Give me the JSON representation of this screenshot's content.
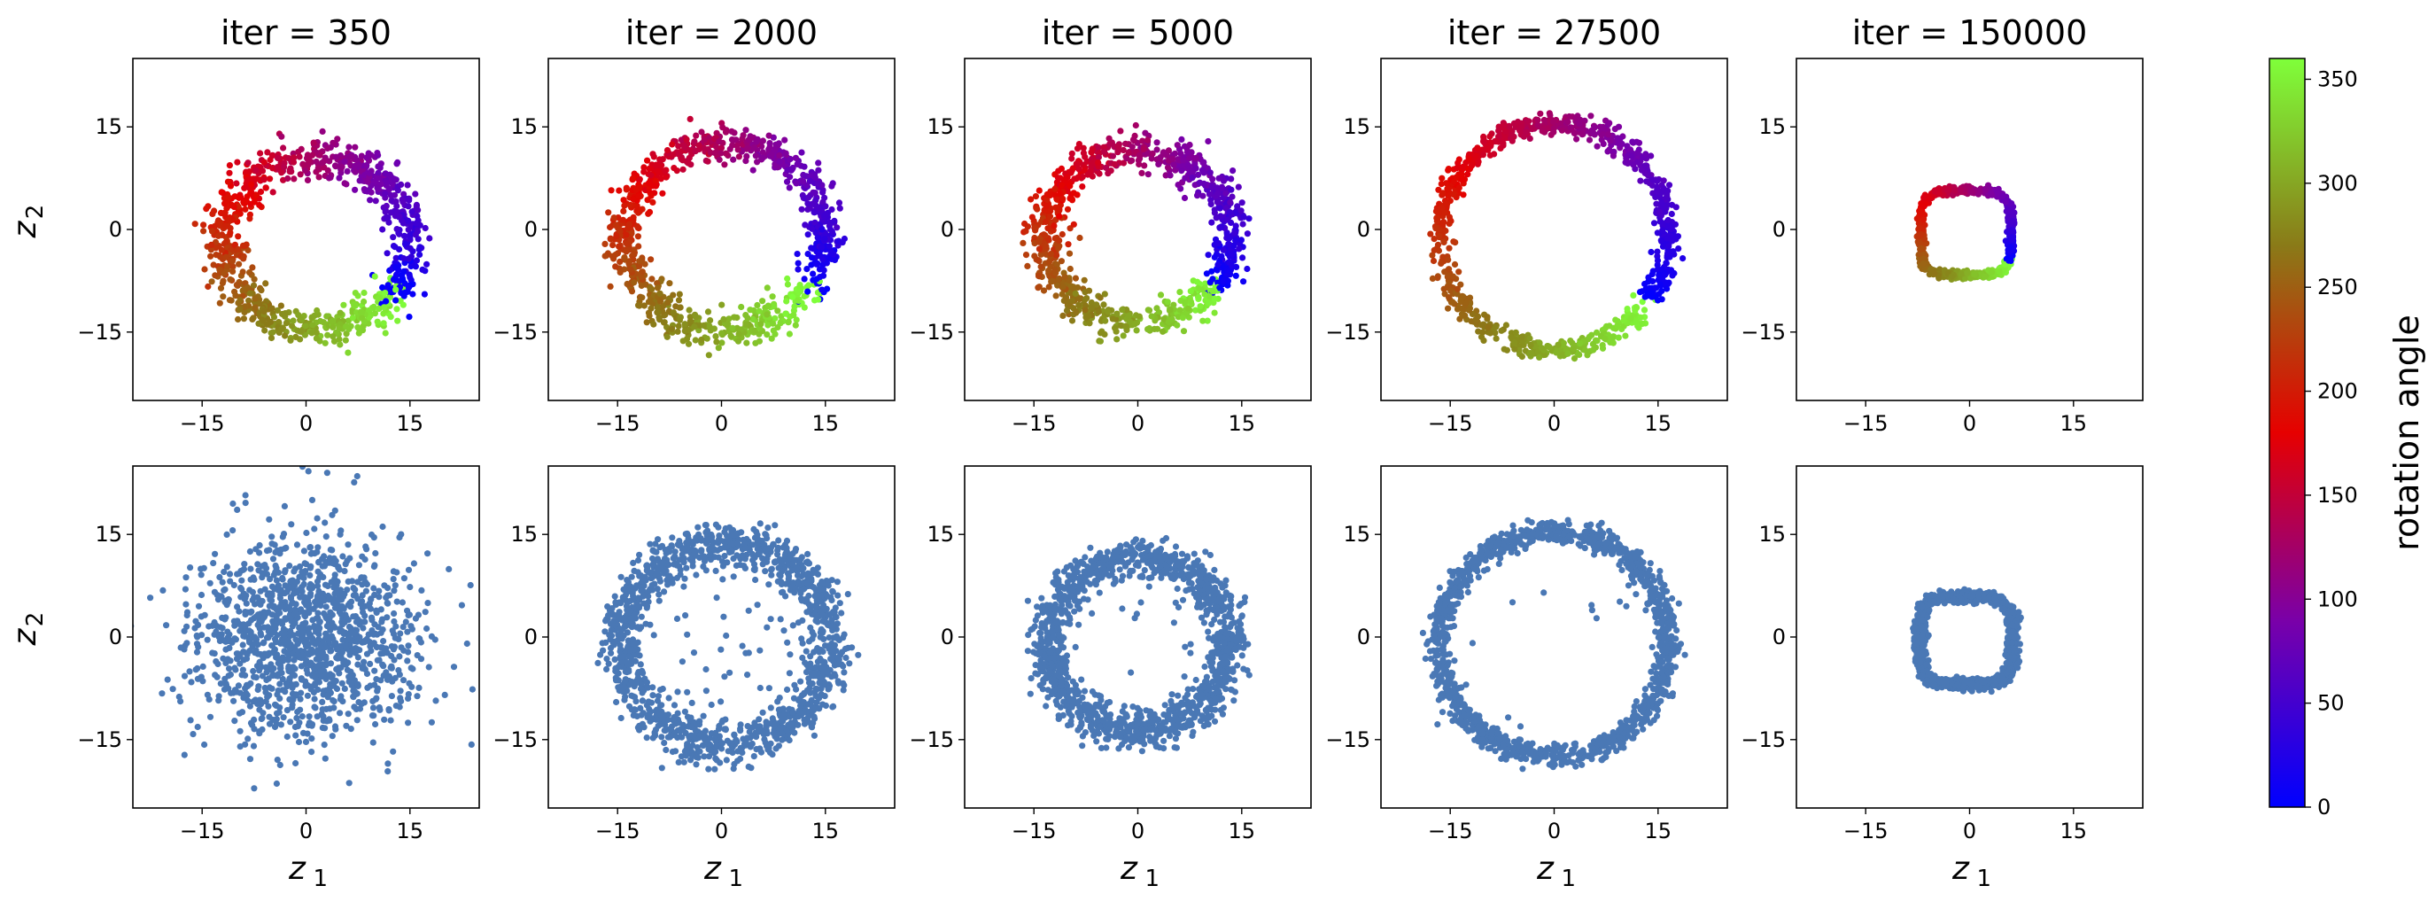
{
  "chart_data": {
    "type": "scatter",
    "layout": "2 rows x 5 columns",
    "titles": [
      "iter = 350",
      "iter = 2000",
      "iter = 5000",
      "iter = 27500",
      "iter = 150000"
    ],
    "xlabel": "z",
    "xlabel_sub": "1",
    "ylabel": "z",
    "ylabel_sub": "2",
    "xlim": [
      -25,
      25
    ],
    "ylim": [
      -25,
      25
    ],
    "ticks": [
      -15,
      0,
      15
    ],
    "tick_labels": [
      "−15",
      "0",
      "15"
    ],
    "grid": false,
    "top_row": {
      "description_color": "points colored by rotation angle",
      "panels": [
        {
          "shape": "ring",
          "cx": 1.5,
          "cy": -2,
          "rx": 13.5,
          "ry": 12.5,
          "noise": 1.4,
          "n": 900
        },
        {
          "shape": "ring",
          "cx": 0.5,
          "cy": -1,
          "rx": 14.5,
          "ry": 13.5,
          "noise": 1.3,
          "n": 900
        },
        {
          "shape": "ring",
          "cx": 0,
          "cy": -1,
          "rx": 13.5,
          "ry": 12.5,
          "noise": 1.3,
          "n": 900
        },
        {
          "shape": "ring",
          "cx": 0,
          "cy": -1,
          "rx": 16.5,
          "ry": 16.5,
          "noise": 0.8,
          "n": 900
        },
        {
          "shape": "superellipse",
          "cx": -0.5,
          "cy": -0.5,
          "rx": 6.5,
          "ry": 6.2,
          "noise": 0.25,
          "n": 900
        }
      ]
    },
    "bottom_row": {
      "point_color": "#4a78b5",
      "panels": [
        {
          "shape": "blob",
          "cx": 0,
          "cy": 0,
          "rx": 13,
          "ry": 12,
          "noise": 6,
          "n": 1300
        },
        {
          "shape": "ring",
          "cx": 0.5,
          "cy": -1,
          "rx": 15,
          "ry": 14.5,
          "noise": 1.6,
          "n": 1300,
          "scatter_inside": 45
        },
        {
          "shape": "ring",
          "cx": 0,
          "cy": -1,
          "rx": 13,
          "ry": 12.5,
          "noise": 1.4,
          "n": 1300,
          "scatter_inside": 14
        },
        {
          "shape": "ring",
          "cx": 0,
          "cy": -1,
          "rx": 16.5,
          "ry": 16.5,
          "noise": 0.9,
          "n": 1300,
          "scatter_inside": 10
        },
        {
          "shape": "superellipse",
          "cx": -0.5,
          "cy": -0.5,
          "rx": 6.7,
          "ry": 6.4,
          "noise": 0.4,
          "n": 1300
        }
      ]
    },
    "colorbar": {
      "label": "rotation angle",
      "min": 0,
      "max": 360,
      "ticks": [
        0,
        50,
        100,
        150,
        200,
        250,
        300,
        350
      ],
      "colors": [
        {
          "value": 0,
          "color": "#0000ff"
        },
        {
          "value": 90,
          "color": "#7a00a8"
        },
        {
          "value": 180,
          "color": "#e60000"
        },
        {
          "value": 270,
          "color": "#8a7a18"
        },
        {
          "value": 360,
          "color": "#7fff3a"
        }
      ]
    }
  }
}
